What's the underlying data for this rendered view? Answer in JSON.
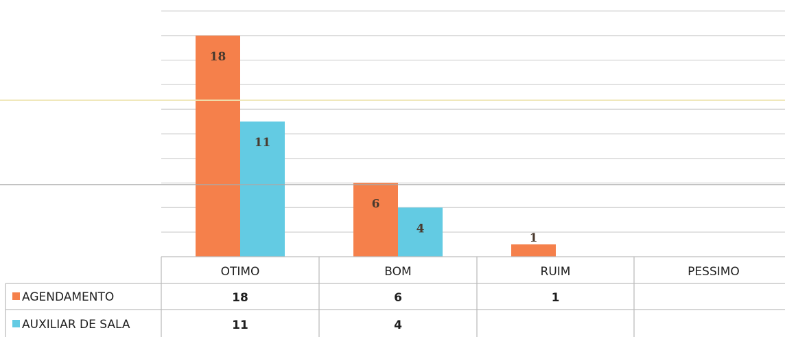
{
  "chart_data": {
    "type": "bar",
    "categories": [
      "OTIMO",
      "BOM",
      "RUIM",
      "PESSIMO"
    ],
    "series": [
      {
        "name": "AGENDAMENTO",
        "values": [
          18,
          6,
          1,
          null
        ],
        "color": "#f5804b"
      },
      {
        "name": "AUXILIAR DE SALA",
        "values": [
          11,
          4,
          null,
          null
        ],
        "color": "#63cbe3"
      }
    ],
    "ylim": [
      0,
      20
    ],
    "grid": true,
    "legend": "data-table"
  },
  "colors": {
    "gridline": "#d6d6d6",
    "table_border": "#bdbdbd",
    "scan_band_yellow": "#eee6b4",
    "scan_band_gray": "#a9a9a9"
  }
}
